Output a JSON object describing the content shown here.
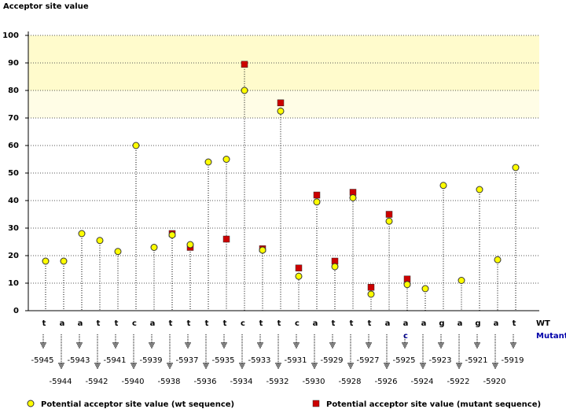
{
  "chart_data": {
    "type": "lollipop",
    "title": "Acceptor site value",
    "categories": [
      "-5945",
      "-5944",
      "-5943",
      "-5942",
      "-5941",
      "-5940",
      "-5939",
      "-5938",
      "-5937",
      "-5936",
      "-5935",
      "-5934",
      "-5933",
      "-5932",
      "-5931",
      "-5930",
      "-5929",
      "-5928",
      "-5927",
      "-5926",
      "-5925",
      "-5924",
      "-5923",
      "-5922",
      "-5921",
      "-5920",
      "-5919"
    ],
    "sequence_label": "WT",
    "sequence": [
      "t",
      "a",
      "a",
      "t",
      "t",
      "c",
      "a",
      "t",
      "t",
      "t",
      "t",
      "c",
      "t",
      "t",
      "c",
      "a",
      "t",
      "t",
      "t",
      "a",
      "a",
      "a",
      "g",
      "a",
      "g",
      "a",
      "t"
    ],
    "mutant_label": "Mutant",
    "mutant_sequence": [
      null,
      null,
      null,
      null,
      null,
      null,
      null,
      null,
      null,
      null,
      null,
      null,
      null,
      null,
      null,
      null,
      null,
      null,
      null,
      null,
      "c",
      null,
      null,
      null,
      null,
      null,
      null
    ],
    "series": [
      {
        "name": "Potential acceptor site value (wt sequence)",
        "color": "#ffff00",
        "marker": "circle",
        "values": [
          18,
          18,
          28,
          25.5,
          21.5,
          60,
          23,
          27.5,
          24,
          54,
          55,
          80,
          22,
          72.5,
          12.5,
          39.5,
          16,
          41,
          6,
          32.5,
          9.5,
          8,
          45.5,
          11,
          44,
          18.5,
          52
        ]
      },
      {
        "name": "Potential acceptor site value (mutant sequence)",
        "color": "#cc0000",
        "marker": "square",
        "values": [
          null,
          null,
          null,
          null,
          null,
          null,
          null,
          28,
          23,
          null,
          26,
          89.5,
          22.5,
          75.5,
          15.5,
          42,
          18,
          43,
          8.5,
          35,
          11.5,
          null,
          null,
          null,
          null,
          null,
          null
        ]
      }
    ],
    "shaded_ranges": [
      {
        "range": [
          80,
          100
        ],
        "color": "#fffbcc"
      },
      {
        "range": [
          70,
          80
        ],
        "color": "#fffde6"
      }
    ],
    "ylim": [
      0,
      100
    ],
    "yticks": [
      0,
      10,
      20,
      30,
      40,
      50,
      60,
      70,
      80,
      90,
      100
    ],
    "grid": true
  }
}
